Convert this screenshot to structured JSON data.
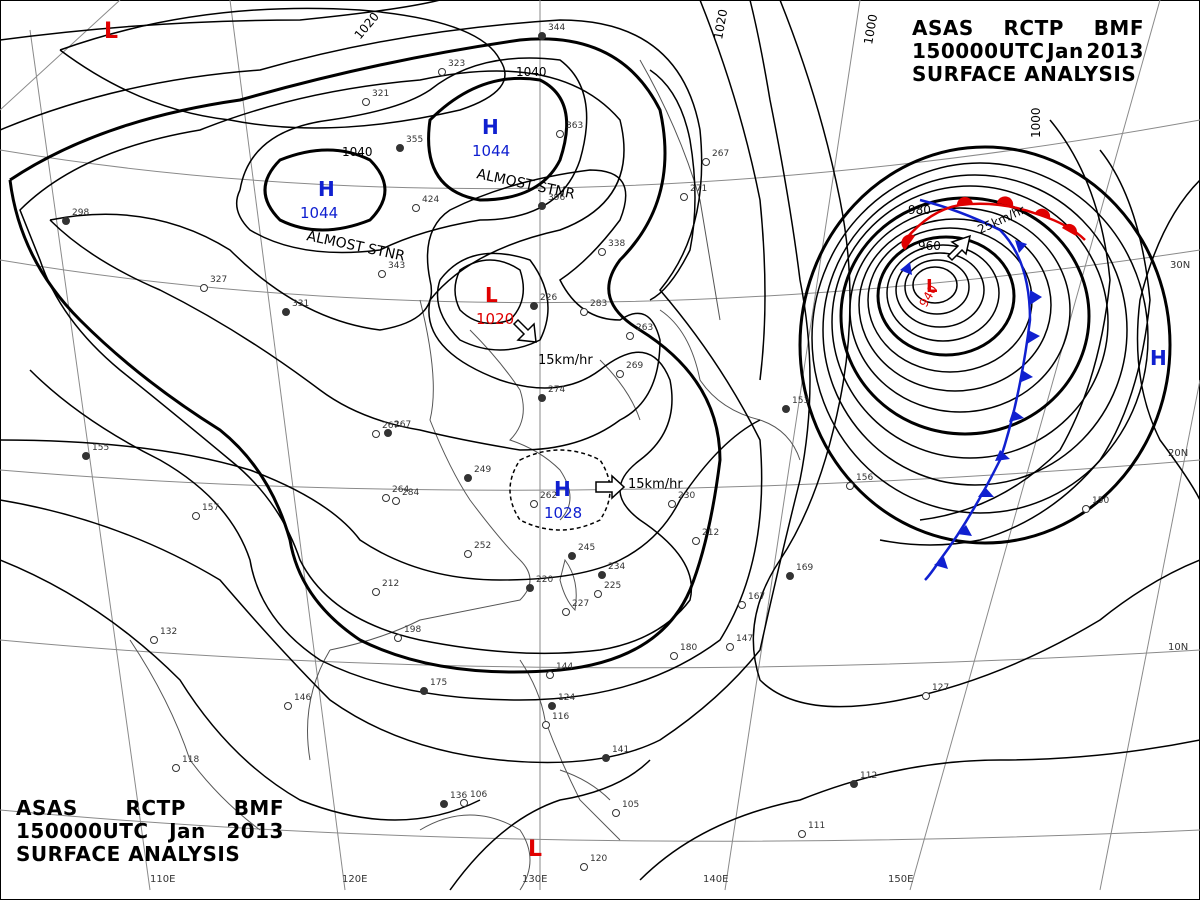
{
  "header": {
    "line1": [
      "ASAS",
      "RCTP",
      "BMF"
    ],
    "line2": [
      "150000UTC",
      "Jan",
      "2013"
    ],
    "line3": "SURFACE ANALYSIS"
  },
  "colors": {
    "high": "#1020d0",
    "low": "#e00000",
    "isobar": "#000000",
    "grid": "#8a8a8a",
    "coast": "#555555"
  },
  "longitude_labels": [
    "110E",
    "120E",
    "130E",
    "140E",
    "150E"
  ],
  "latitude_labels": [
    "30N",
    "20N",
    "10N"
  ],
  "isobar_labels": [
    "1020",
    "1040",
    "1040",
    "1020",
    "1000",
    "1000",
    "980",
    "960"
  ],
  "pressure_systems": [
    {
      "type": "H",
      "value": "1044",
      "note": "ALMOST STNR"
    },
    {
      "type": "H",
      "value": "1044",
      "note": "ALMOST STNR"
    },
    {
      "type": "L",
      "value": "1020",
      "motion": "15km/hr"
    },
    {
      "type": "H",
      "value": "1028",
      "motion": "15km/hr"
    },
    {
      "type": "L",
      "value": "940",
      "motion": "25km/hr"
    },
    {
      "type": "L",
      "value": ""
    },
    {
      "type": "L",
      "value": ""
    },
    {
      "type": "H",
      "value": ""
    }
  ],
  "station_values": [
    "344",
    "323",
    "321",
    "355",
    "424",
    "363",
    "396",
    "338",
    "283",
    "226",
    "263",
    "269",
    "274",
    "267",
    "262",
    "249",
    "264",
    "252",
    "245",
    "230",
    "212",
    "234",
    "225",
    "227",
    "220",
    "212",
    "198",
    "175",
    "146",
    "144",
    "124",
    "118",
    "116",
    "141",
    "106",
    "105",
    "136",
    "120",
    "111",
    "112",
    "150",
    "127",
    "153",
    "156",
    "167",
    "169",
    "147",
    "180",
    "155",
    "157",
    "132",
    "331",
    "343",
    "284",
    "267",
    "271",
    "267",
    "298",
    "327"
  ]
}
